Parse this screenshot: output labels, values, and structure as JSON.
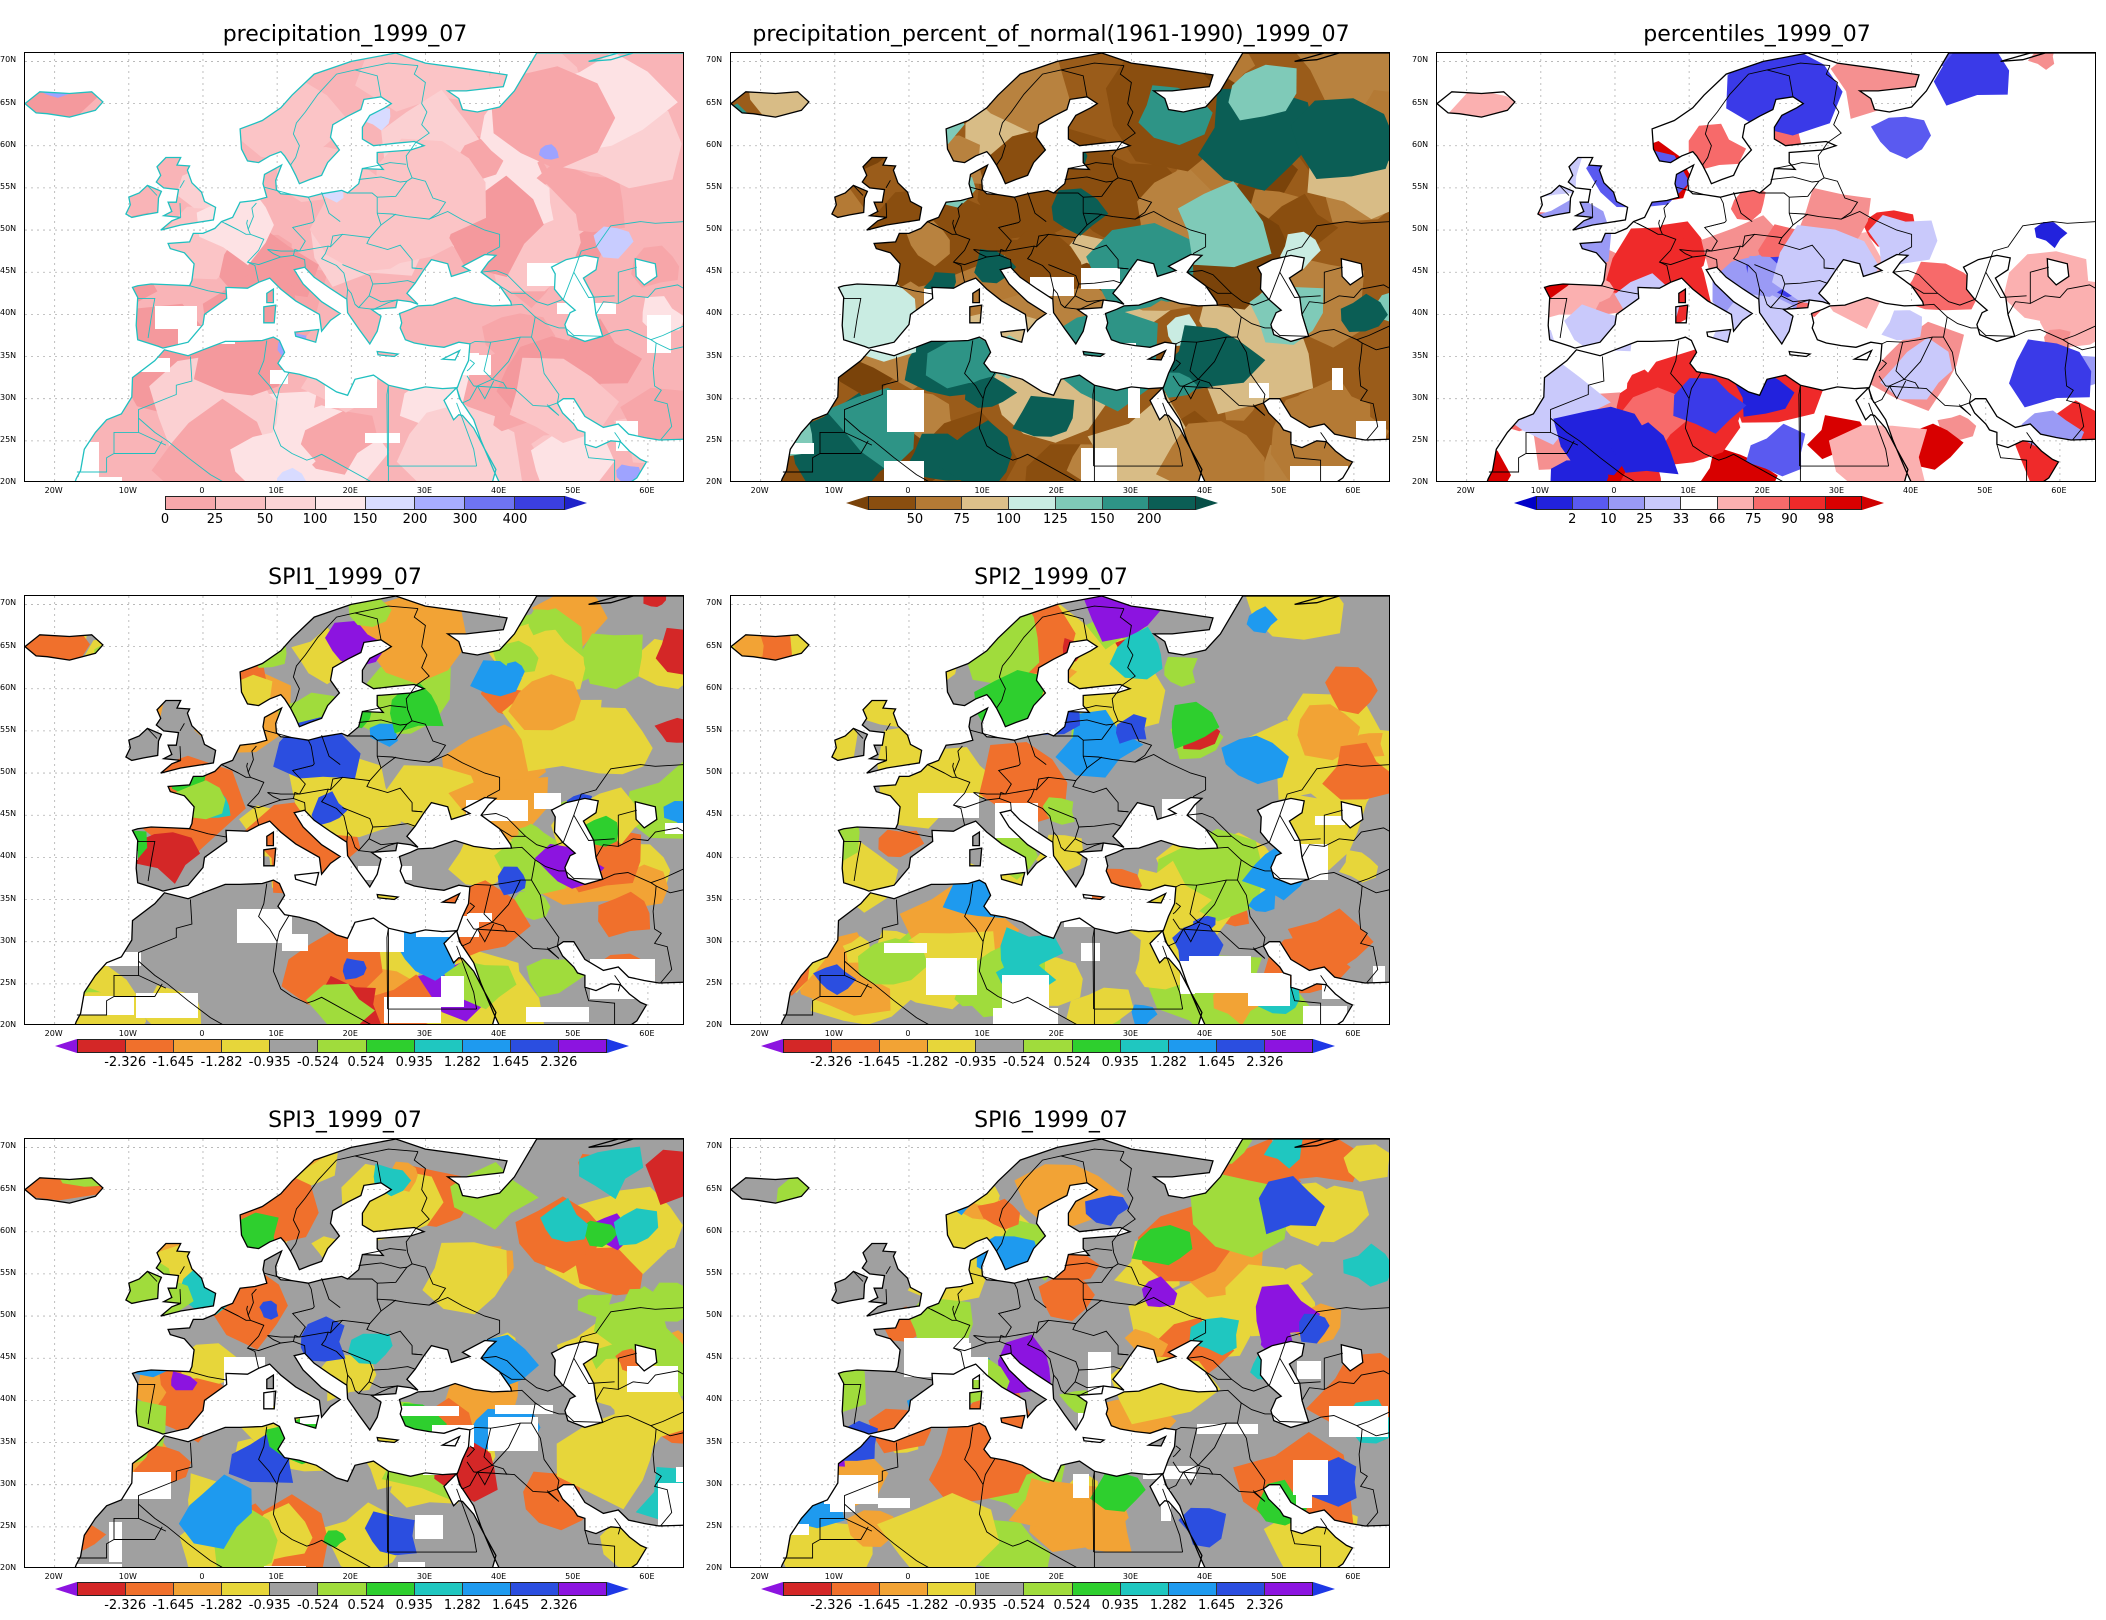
{
  "lat_labels": [
    "70N",
    "65N",
    "60N",
    "55N",
    "50N",
    "45N",
    "40N",
    "35N",
    "30N",
    "25N",
    "20N"
  ],
  "lon_labels": [
    "20W",
    "10W",
    "0",
    "10E",
    "20E",
    "30E",
    "40E",
    "50E",
    "60E"
  ],
  "panels": [
    {
      "title": "precipitation_1999_07",
      "style": "precip",
      "legend_ticks": [
        "0",
        "25",
        "50",
        "100",
        "150",
        "200",
        "300",
        "400"
      ],
      "legend_colors": [
        "#f7a8ab",
        "#f9bec0",
        "#fbd4d6",
        "#fde8ea",
        "#d8dcff",
        "#a8adff",
        "#6f74f2",
        "#3b3fe0"
      ],
      "left_arrow_color": "#ffffff",
      "right_arrow_color": "#1f22c9"
    },
    {
      "title": "precipitation_percent_of_normal(1961-1990)_1999_07",
      "style": "pct",
      "legend_ticks": [
        "50",
        "75",
        "100",
        "125",
        "150",
        "200"
      ],
      "legend_colors": [
        "#8a4e0f",
        "#b47a35",
        "#dcc08a",
        "#c9ece2",
        "#7fcab8",
        "#2e9486",
        "#0b5e55"
      ],
      "left_arrow_color": "#7a430a",
      "right_arrow_color": "#075048"
    },
    {
      "title": "percentiles_1999_07",
      "style": "perc",
      "legend_ticks": [
        "2",
        "10",
        "25",
        "33",
        "66",
        "75",
        "90",
        "98"
      ],
      "legend_colors": [
        "#2222dd",
        "#5a5af0",
        "#9a9af5",
        "#c9c9fb",
        "#ffffff",
        "#fbb0b0",
        "#f76a6a",
        "#ef2a2a",
        "#d80000"
      ],
      "left_arrow_color": "#0000c8",
      "right_arrow_color": "#d00000"
    },
    {
      "title": "SPI1_1999_07",
      "style": "spi",
      "legend_ticks": [
        "-2.326",
        "-1.645",
        "-1.282",
        "-0.935",
        "-0.524",
        "0.524",
        "0.935",
        "1.282",
        "1.645",
        "2.326"
      ],
      "legend_colors": [
        "#d42727",
        "#f0702c",
        "#f2a335",
        "#e7d63a",
        "#a0a0a0",
        "#a0dc3c",
        "#2ecf2e",
        "#1fc7c0",
        "#1e9aef",
        "#2b4ee0",
        "#8c14e0"
      ],
      "left_arrow_color": "#8c14e0",
      "right_arrow_color": "#1e38e6"
    },
    {
      "title": "SPI2_1999_07",
      "style": "spi",
      "legend_ticks": [
        "-2.326",
        "-1.645",
        "-1.282",
        "-0.935",
        "-0.524",
        "0.524",
        "0.935",
        "1.282",
        "1.645",
        "2.326"
      ],
      "legend_colors": [
        "#d42727",
        "#f0702c",
        "#f2a335",
        "#e7d63a",
        "#a0a0a0",
        "#a0dc3c",
        "#2ecf2e",
        "#1fc7c0",
        "#1e9aef",
        "#2b4ee0",
        "#8c14e0"
      ],
      "left_arrow_color": "#8c14e0",
      "right_arrow_color": "#1e38e6"
    },
    {
      "title": "SPI3_1999_07",
      "style": "spi",
      "legend_ticks": [
        "-2.326",
        "-1.645",
        "-1.282",
        "-0.935",
        "-0.524",
        "0.524",
        "0.935",
        "1.282",
        "1.645",
        "2.326"
      ],
      "legend_colors": [
        "#d42727",
        "#f0702c",
        "#f2a335",
        "#e7d63a",
        "#a0a0a0",
        "#a0dc3c",
        "#2ecf2e",
        "#1fc7c0",
        "#1e9aef",
        "#2b4ee0",
        "#8c14e0"
      ],
      "left_arrow_color": "#8c14e0",
      "right_arrow_color": "#1e38e6"
    },
    {
      "title": "SPI6_1999_07",
      "style": "spi",
      "legend_ticks": [
        "-2.326",
        "-1.645",
        "-1.282",
        "-0.935",
        "-0.524",
        "0.524",
        "0.935",
        "1.282",
        "1.645",
        "2.326"
      ],
      "legend_colors": [
        "#d42727",
        "#f0702c",
        "#f2a335",
        "#e7d63a",
        "#a0a0a0",
        "#a0dc3c",
        "#2ecf2e",
        "#1fc7c0",
        "#1e9aef",
        "#2b4ee0",
        "#8c14e0"
      ],
      "left_arrow_color": "#8c14e0",
      "right_arrow_color": "#1e38e6"
    }
  ]
}
